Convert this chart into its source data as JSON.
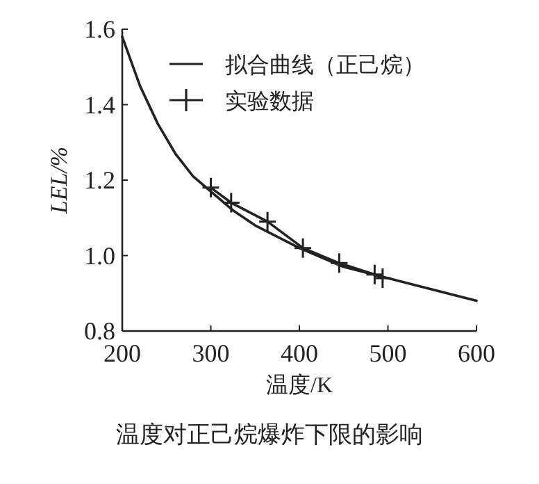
{
  "chart_data": {
    "type": "line",
    "xlabel": "温度/K",
    "ylabel": "LEL/%",
    "annotations": [
      "温度对正己烷爆炸下限的影响"
    ],
    "xlim": [
      200,
      600
    ],
    "ylim": [
      0.8,
      1.6
    ],
    "xticks": [
      {
        "value": 200,
        "label": "200"
      },
      {
        "value": 300,
        "label": "300"
      },
      {
        "value": 400,
        "label": "400"
      },
      {
        "value": 500,
        "label": "500"
      },
      {
        "value": 600,
        "label": "600"
      }
    ],
    "yticks": [
      {
        "value": 0.8,
        "label": "0.8"
      },
      {
        "value": 1.0,
        "label": "1.0"
      },
      {
        "value": 1.2,
        "label": "1.2"
      },
      {
        "value": 1.4,
        "label": "1.4"
      },
      {
        "value": 1.6,
        "label": "1.6"
      }
    ],
    "legend": "top right",
    "grid": false,
    "series": [
      {
        "name": "拟合曲线（正己烷）",
        "color": "#222222",
        "marker": "none",
        "x": [
          200,
          220,
          240,
          260,
          280,
          300,
          325,
          350,
          375,
          400,
          450,
          500,
          550,
          600
        ],
        "values": [
          1.58,
          1.45,
          1.35,
          1.27,
          1.21,
          1.17,
          1.12,
          1.08,
          1.05,
          1.02,
          0.97,
          0.94,
          0.91,
          0.88
        ]
      },
      {
        "name": "实验数据",
        "color": "#222222",
        "marker": "cross",
        "x": [
          300,
          323,
          364,
          404,
          445,
          485,
          494
        ],
        "values": [
          1.18,
          1.14,
          1.09,
          1.02,
          0.98,
          0.95,
          0.94
        ]
      }
    ]
  }
}
